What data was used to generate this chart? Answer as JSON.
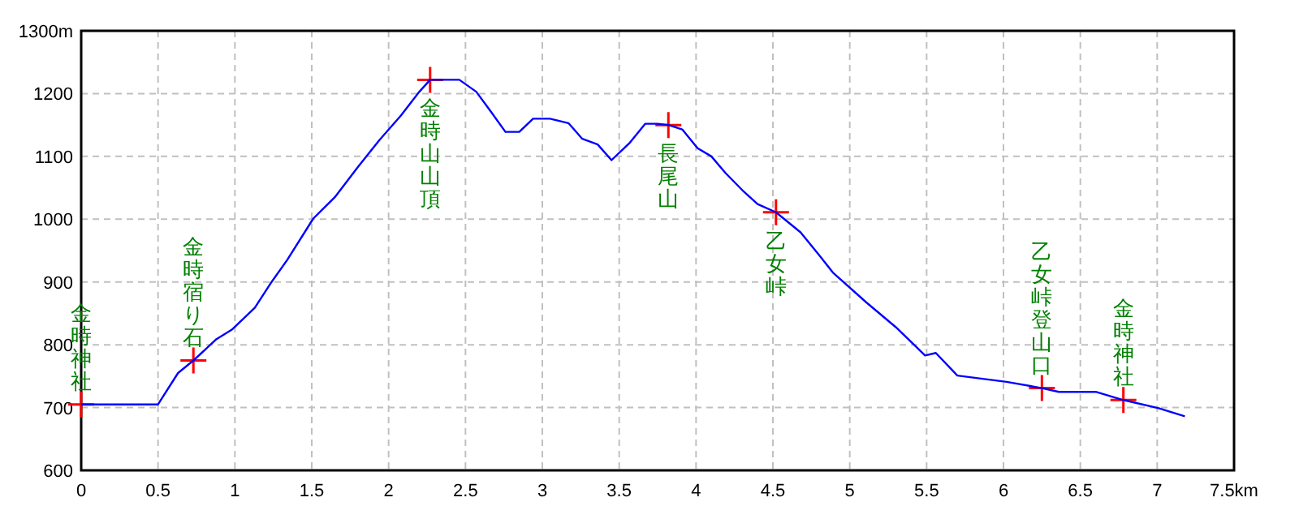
{
  "chart_data": {
    "type": "line",
    "xlim": [
      0,
      7.5
    ],
    "ylim": [
      600,
      1300
    ],
    "xticks": [
      0,
      0.5,
      1,
      1.5,
      2,
      2.5,
      3,
      3.5,
      4,
      4.5,
      5,
      5.5,
      6,
      6.5,
      7,
      {
        "value": 7.5,
        "label": "7.5km"
      }
    ],
    "yticks": [
      600,
      700,
      800,
      900,
      1000,
      1100,
      1200,
      {
        "value": 1300,
        "label": "1300m"
      }
    ],
    "grid": true,
    "series": [
      {
        "color": "#0000ff",
        "line_style": "solid",
        "x": [
          0,
          0.5,
          0.63,
          0.73,
          0.88,
          0.98,
          1.13,
          1.23,
          1.34,
          1.51,
          1.65,
          1.8,
          1.94,
          2.08,
          2.2,
          2.27,
          2.46,
          2.57,
          2.66,
          2.76,
          2.85,
          2.94,
          3.05,
          3.17,
          3.26,
          3.36,
          3.45,
          3.57,
          3.67,
          3.75,
          3.82,
          3.91,
          4.01,
          4.1,
          4.19,
          4.31,
          4.4,
          4.52,
          4.68,
          4.81,
          4.89,
          5.11,
          5.3,
          5.49,
          5.56,
          5.7,
          6.02,
          6.25,
          6.36,
          6.6,
          6.78,
          7.01,
          7.18
        ],
        "values": [
          705,
          705,
          755,
          775,
          809,
          824,
          859,
          897,
          935,
          1001,
          1035,
          1083,
          1126,
          1165,
          1203,
          1222,
          1222,
          1203,
          1173,
          1139,
          1139,
          1160,
          1160,
          1153,
          1128,
          1119,
          1094,
          1122,
          1152,
          1152,
          1150,
          1143,
          1113,
          1100,
          1074,
          1044,
          1024,
          1011,
          979,
          940,
          915,
          867,
          828,
          783,
          787,
          751,
          741,
          731,
          725,
          725,
          712,
          699,
          686
        ]
      },
      {
        "type": "scatter",
        "color": "#ff0000",
        "marker": "cross",
        "x": [
          0,
          0.73,
          2.27,
          3.82,
          4.52,
          6.25,
          6.78
        ],
        "values": [
          705,
          775,
          1222,
          1150,
          1011,
          731,
          712
        ]
      }
    ],
    "annotations": [
      {
        "text": "金時神社",
        "x": 0,
        "y": 705
      },
      {
        "text": "金時宿り石",
        "x": 0.73,
        "y": 775
      },
      {
        "text": "金時山山頂",
        "x": 2.27,
        "y": 1222
      },
      {
        "text": "長尾山",
        "x": 3.82,
        "y": 1150
      },
      {
        "text": "乙女峠",
        "x": 4.52,
        "y": 1011
      },
      {
        "text": "乙女峠登山口",
        "x": 6.25,
        "y": 731
      },
      {
        "text": "金時神社",
        "x": 6.78,
        "y": 712
      }
    ]
  }
}
